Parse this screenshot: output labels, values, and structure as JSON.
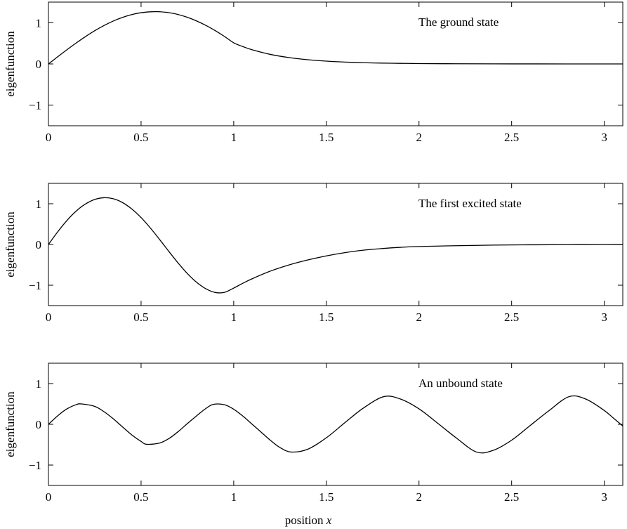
{
  "figure": {
    "xlabel_prefix": "position ",
    "xlabel_var": "x"
  },
  "chart_data": [
    {
      "type": "line",
      "annotation": "The ground state",
      "ylabel": "eigenfunction",
      "xlim": [
        0,
        3.1
      ],
      "ylim": [
        -1.5,
        1.5
      ],
      "xticks": [
        0,
        0.5,
        1,
        1.5,
        2,
        2.5,
        3
      ],
      "xtick_labels": [
        "0",
        "0.5",
        "1",
        "1.5",
        "2",
        "2.5",
        "3"
      ],
      "yticks": [
        1,
        0,
        -1
      ],
      "ytick_labels": [
        "1",
        "0",
        "−1"
      ],
      "grid": false,
      "series": [
        {
          "x": [
            0,
            0.05,
            0.1,
            0.15,
            0.2,
            0.25,
            0.3,
            0.35,
            0.4,
            0.45,
            0.5,
            0.55,
            0.58,
            0.6,
            0.65,
            0.7,
            0.75,
            0.8,
            0.85,
            0.9,
            0.95,
            1.0,
            1.05,
            1.1,
            1.2,
            1.3,
            1.4,
            1.5,
            1.6,
            1.7,
            1.8,
            1.9,
            2.0,
            2.2,
            2.4,
            2.6,
            2.8,
            3.0,
            3.1
          ],
          "y": [
            0,
            0.174,
            0.345,
            0.509,
            0.664,
            0.806,
            0.932,
            1.041,
            1.13,
            1.198,
            1.243,
            1.265,
            1.268,
            1.266,
            1.244,
            1.199,
            1.131,
            1.042,
            0.934,
            0.808,
            0.667,
            0.513,
            0.42,
            0.343,
            0.229,
            0.153,
            0.102,
            0.068,
            0.045,
            0.03,
            0.02,
            0.014,
            0.009,
            0.004,
            0.002,
            0.001,
            0.0,
            0.0,
            0.0
          ]
        }
      ]
    },
    {
      "type": "line",
      "annotation": "The first excited state",
      "ylabel": "eigenfunction",
      "xlim": [
        0,
        3.1
      ],
      "ylim": [
        -1.5,
        1.5
      ],
      "xticks": [
        0,
        0.5,
        1,
        1.5,
        2,
        2.5,
        3
      ],
      "xtick_labels": [
        "0",
        "0.5",
        "1",
        "1.5",
        "2",
        "2.5",
        "3"
      ],
      "yticks": [
        1,
        0,
        -1
      ],
      "ytick_labels": [
        "1",
        "0",
        "−1"
      ],
      "grid": false,
      "series": [
        {
          "x": [
            0,
            0.05,
            0.1,
            0.15,
            0.2,
            0.25,
            0.3,
            0.35,
            0.4,
            0.45,
            0.5,
            0.55,
            0.6,
            0.65,
            0.7,
            0.75,
            0.8,
            0.85,
            0.9,
            0.95,
            1.0,
            1.05,
            1.1,
            1.2,
            1.3,
            1.4,
            1.5,
            1.6,
            1.7,
            1.8,
            1.9,
            2.0,
            2.2,
            2.4,
            2.6,
            2.8,
            3.0,
            3.1
          ],
          "y": [
            0,
            0.311,
            0.59,
            0.821,
            0.994,
            1.105,
            1.148,
            1.122,
            1.028,
            0.871,
            0.66,
            0.405,
            0.122,
            -0.171,
            -0.456,
            -0.714,
            -0.929,
            -1.088,
            -1.178,
            -1.175,
            -1.07,
            -0.95,
            -0.84,
            -0.65,
            -0.5,
            -0.38,
            -0.28,
            -0.2,
            -0.14,
            -0.1,
            -0.07,
            -0.05,
            -0.03,
            -0.015,
            -0.008,
            -0.004,
            -0.002,
            -0.001
          ]
        }
      ]
    },
    {
      "type": "line",
      "annotation": "An unbound state",
      "ylabel": "eigenfunction",
      "xlim": [
        0,
        3.1
      ],
      "ylim": [
        -1.5,
        1.5
      ],
      "xticks": [
        0,
        0.5,
        1,
        1.5,
        2,
        2.5,
        3
      ],
      "xtick_labels": [
        "0",
        "0.5",
        "1",
        "1.5",
        "2",
        "2.5",
        "3"
      ],
      "yticks": [
        1,
        0,
        -1
      ],
      "ytick_labels": [
        "1",
        "0",
        "−1"
      ],
      "grid": false,
      "series": [
        {
          "x": [
            0,
            0.05,
            0.1,
            0.15,
            0.18,
            0.25,
            0.3,
            0.35,
            0.4,
            0.45,
            0.5,
            0.53,
            0.6,
            0.65,
            0.7,
            0.75,
            0.8,
            0.85,
            0.89,
            0.95,
            1.0,
            1.05,
            1.1,
            1.15,
            1.2,
            1.25,
            1.31,
            1.4,
            1.5,
            1.6,
            1.7,
            1.81,
            1.9,
            2.0,
            2.1,
            2.2,
            2.31,
            2.4,
            2.5,
            2.6,
            2.7,
            2.81,
            2.9,
            3.0,
            3.05,
            3.1
          ],
          "y": [
            0,
            0.21,
            0.38,
            0.484,
            0.5,
            0.44,
            0.31,
            0.135,
            -0.065,
            -0.26,
            -0.42,
            -0.49,
            -0.46,
            -0.35,
            -0.18,
            0.02,
            0.21,
            0.39,
            0.49,
            0.48,
            0.37,
            0.2,
            0.0,
            -0.2,
            -0.4,
            -0.57,
            -0.68,
            -0.61,
            -0.33,
            0.04,
            0.4,
            0.68,
            0.62,
            0.38,
            0.03,
            -0.33,
            -0.68,
            -0.64,
            -0.39,
            -0.03,
            0.33,
            0.68,
            0.62,
            0.34,
            0.15,
            -0.04
          ]
        }
      ]
    }
  ]
}
